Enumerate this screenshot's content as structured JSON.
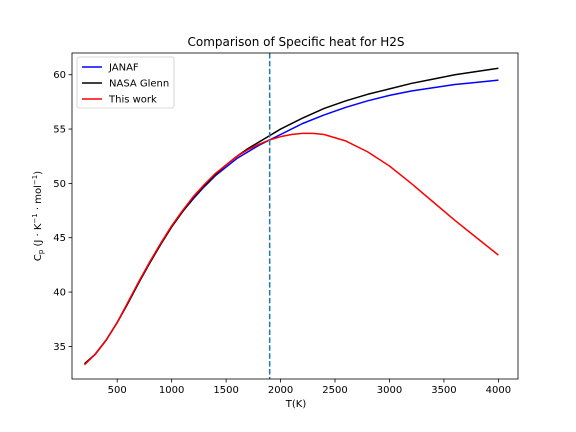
{
  "chart_data": {
    "type": "line",
    "title": "Comparison of Specific heat for H2S",
    "xlabel": "T(K)",
    "ylabel": {
      "symbol": "C",
      "subscript": "p",
      "units": "(J · K",
      "exp1": "−1",
      "mid": " · mol",
      "exp2": "−1",
      "close": ")"
    },
    "xlim": [
      85,
      4180
    ],
    "ylim": [
      32.0,
      62.0
    ],
    "xticks": [
      500,
      1000,
      1500,
      2000,
      2500,
      3000,
      3500,
      4000
    ],
    "yticks": [
      35,
      40,
      45,
      50,
      55,
      60
    ],
    "vline": {
      "x": 1900,
      "style": "dashed",
      "color": "#1f77b4"
    },
    "legend_position": "upper-left",
    "series": [
      {
        "name": "JANAF",
        "color": "#0000ff",
        "x": [
          200,
          300,
          400,
          500,
          600,
          700,
          800,
          900,
          1000,
          1100,
          1200,
          1300,
          1400,
          1500,
          1600,
          1700,
          1800,
          1900,
          2000,
          2200,
          2400,
          2600,
          2800,
          3000,
          3200,
          3400,
          3600,
          3800,
          4000
        ],
        "y": [
          33.4,
          34.3,
          35.6,
          37.2,
          39.0,
          40.9,
          42.7,
          44.4,
          46.0,
          47.4,
          48.6,
          49.7,
          50.7,
          51.5,
          52.3,
          52.9,
          53.5,
          54.0,
          54.5,
          55.5,
          56.3,
          57.0,
          57.6,
          58.1,
          58.5,
          58.8,
          59.1,
          59.3,
          59.5
        ]
      },
      {
        "name": "NASA Glenn",
        "color": "#000000",
        "x": [
          200,
          300,
          400,
          500,
          600,
          700,
          800,
          900,
          1000,
          1100,
          1200,
          1300,
          1400,
          1500,
          1600,
          1700,
          1800,
          1900,
          2000,
          2200,
          2400,
          2600,
          2800,
          3000,
          3200,
          3400,
          3600,
          3800,
          4000
        ],
        "y": [
          33.4,
          34.3,
          35.6,
          37.2,
          39.0,
          40.9,
          42.7,
          44.4,
          46.0,
          47.4,
          48.7,
          49.8,
          50.8,
          51.7,
          52.5,
          53.2,
          53.8,
          54.4,
          55.0,
          56.0,
          56.9,
          57.6,
          58.2,
          58.7,
          59.2,
          59.6,
          60.0,
          60.3,
          60.6
        ]
      },
      {
        "name": "This work",
        "color": "#ff0000",
        "x": [
          200,
          300,
          400,
          500,
          600,
          700,
          800,
          900,
          1000,
          1100,
          1200,
          1300,
          1400,
          1500,
          1600,
          1700,
          1800,
          1900,
          2000,
          2100,
          2200,
          2300,
          2400,
          2600,
          2800,
          3000,
          3200,
          3400,
          3600,
          3800,
          4000
        ],
        "y": [
          33.3,
          34.3,
          35.6,
          37.2,
          39.1,
          41.0,
          42.8,
          44.5,
          46.1,
          47.5,
          48.8,
          49.9,
          50.9,
          51.7,
          52.5,
          53.1,
          53.6,
          54.0,
          54.3,
          54.5,
          54.6,
          54.6,
          54.5,
          53.9,
          52.9,
          51.6,
          50.0,
          48.3,
          46.6,
          45.0,
          43.4
        ]
      }
    ]
  }
}
